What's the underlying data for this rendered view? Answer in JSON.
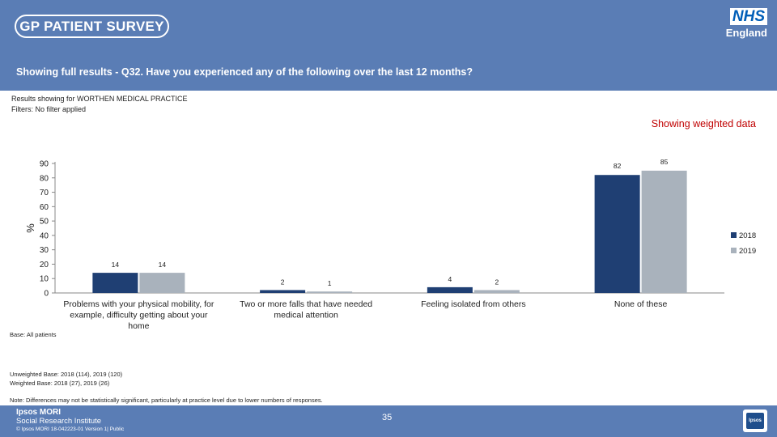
{
  "header": {
    "logo_text": "GP PATIENT SURVEY",
    "nhs_text": "NHS",
    "nhs_region": "England",
    "question": "Showing full results - Q32.  Have you experienced any of the following over the last 12 months?"
  },
  "meta": {
    "results_for": "Results showing for WORTHEN MEDICAL PRACTICE",
    "filters": "Filters: No filter applied",
    "weighted_label": "Showing weighted data",
    "base": "Base: All patients",
    "unweighted": "Unweighted Base: 2018 (114), 2019 (120)",
    "weighted": "Weighted Base: 2018 (27), 2019 (26)",
    "note": "Note: Differences may not be statistically significant, particularly at practice level due to lower numbers of responses."
  },
  "footer": {
    "company": "Ipsos MORI",
    "institute": "Social Research Institute",
    "copyright": "© Ipsos MORI     18-042223-01 Version 1| Public",
    "page": "35",
    "logo": "Ipsos"
  },
  "colors": {
    "header_bg": "#5a7db5",
    "series_2018": "#1f3f73",
    "series_2019": "#a9b2bc",
    "weighted_text": "#c00000"
  },
  "chart_data": {
    "type": "bar",
    "ylabel": "%",
    "ylim": [
      0,
      90
    ],
    "yticks": [
      0,
      10,
      20,
      30,
      40,
      50,
      60,
      70,
      80,
      90
    ],
    "categories": [
      [
        "Problems with your physical mobility, for",
        "example, difficulty getting about your",
        "home"
      ],
      [
        "Two or more falls that have needed",
        "medical attention"
      ],
      [
        "Feeling isolated from others"
      ],
      [
        "None of these"
      ]
    ],
    "series": [
      {
        "name": "2018",
        "values": [
          14,
          2,
          4,
          82
        ],
        "color": "#1f3f73"
      },
      {
        "name": "2019",
        "values": [
          14,
          1,
          2,
          85
        ],
        "color": "#a9b2bc"
      }
    ],
    "legend_position": "right",
    "grid": false
  }
}
